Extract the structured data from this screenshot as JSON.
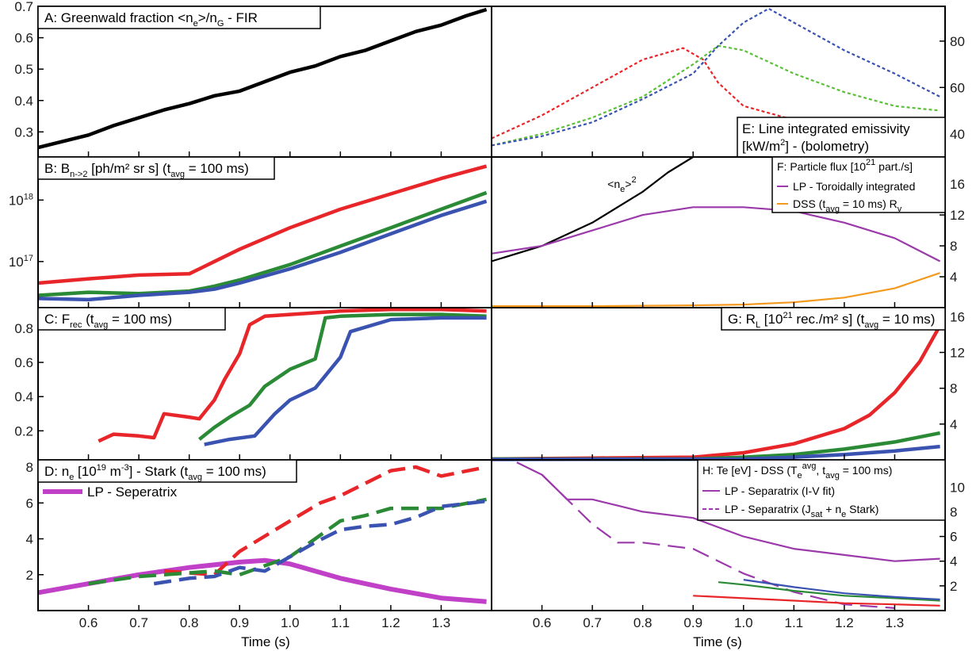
{
  "figure": {
    "xlabel": "Time (s)"
  },
  "colors": {
    "red": "#e8262a",
    "green": "#2a8a35",
    "blue": "#3a52b0",
    "purple": "#9b3aaa",
    "lime": "#5cbf3a",
    "orange": "#f39a1e",
    "black": "#000000"
  },
  "chart_data": [
    {
      "id": "A",
      "type": "line",
      "title": "A:   Greenwald fraction <n_e>/n_G - FIR",
      "xlim": [
        0.5,
        1.4
      ],
      "ylim": [
        0.22,
        0.7
      ],
      "yticks": [
        "0.3",
        "0.4",
        "0.5",
        "0.6",
        "0.7"
      ],
      "yaxis": "left",
      "series": [
        {
          "color": "#000000",
          "x": [
            0.5,
            0.55,
            0.6,
            0.65,
            0.7,
            0.75,
            0.8,
            0.85,
            0.9,
            0.95,
            1.0,
            1.05,
            1.1,
            1.15,
            1.2,
            1.25,
            1.3,
            1.35,
            1.39
          ],
          "y": [
            0.25,
            0.27,
            0.29,
            0.32,
            0.345,
            0.37,
            0.39,
            0.415,
            0.43,
            0.46,
            0.49,
            0.51,
            0.54,
            0.56,
            0.59,
            0.62,
            0.64,
            0.67,
            0.69
          ]
        }
      ]
    },
    {
      "id": "B",
      "type": "line",
      "title": "B:  B_{n->2} [ph/m² sr s] (t_avg = 100 ms)",
      "xlim": [
        0.5,
        1.4
      ],
      "ylim": [
        16.25,
        18.7
      ],
      "ylog": true,
      "yticks": [
        "10^17",
        "10^18"
      ],
      "yaxis": "left",
      "series": [
        {
          "color": "#e8262a",
          "x": [
            0.5,
            0.6,
            0.7,
            0.8,
            0.85,
            0.9,
            1.0,
            1.1,
            1.2,
            1.3,
            1.39
          ],
          "y": [
            16.65,
            16.72,
            16.78,
            16.8,
            17.0,
            17.2,
            17.55,
            17.85,
            18.1,
            18.35,
            18.55
          ]
        },
        {
          "color": "#2a8a35",
          "x": [
            0.5,
            0.6,
            0.7,
            0.8,
            0.85,
            0.9,
            1.0,
            1.1,
            1.2,
            1.3,
            1.39
          ],
          "y": [
            16.45,
            16.5,
            16.48,
            16.52,
            16.6,
            16.7,
            16.95,
            17.25,
            17.55,
            17.85,
            18.12
          ]
        },
        {
          "color": "#3a52b0",
          "x": [
            0.5,
            0.6,
            0.7,
            0.8,
            0.85,
            0.9,
            1.0,
            1.1,
            1.2,
            1.3,
            1.39
          ],
          "y": [
            16.4,
            16.38,
            16.45,
            16.5,
            16.55,
            16.65,
            16.88,
            17.15,
            17.45,
            17.75,
            17.98
          ]
        }
      ]
    },
    {
      "id": "C",
      "type": "line",
      "title": "C:  F_rec (t_avg = 100 ms)",
      "xlim": [
        0.5,
        1.4
      ],
      "ylim": [
        0.03,
        0.92
      ],
      "yticks": [
        "0.2",
        "0.4",
        "0.6",
        "0.8"
      ],
      "yaxis": "left",
      "series": [
        {
          "color": "#e8262a",
          "x": [
            0.62,
            0.65,
            0.7,
            0.73,
            0.75,
            0.8,
            0.82,
            0.85,
            0.87,
            0.9,
            0.92,
            0.95,
            1.0,
            1.1,
            1.2,
            1.3,
            1.39
          ],
          "y": [
            0.14,
            0.18,
            0.17,
            0.16,
            0.3,
            0.28,
            0.27,
            0.38,
            0.5,
            0.65,
            0.82,
            0.87,
            0.88,
            0.9,
            0.91,
            0.91,
            0.9
          ]
        },
        {
          "color": "#2a8a35",
          "x": [
            0.82,
            0.85,
            0.88,
            0.92,
            0.95,
            1.0,
            1.05,
            1.07,
            1.1,
            1.2,
            1.3,
            1.39
          ],
          "y": [
            0.15,
            0.22,
            0.28,
            0.35,
            0.46,
            0.56,
            0.62,
            0.86,
            0.87,
            0.88,
            0.88,
            0.87
          ]
        },
        {
          "color": "#3a52b0",
          "x": [
            0.83,
            0.88,
            0.93,
            0.97,
            1.0,
            1.05,
            1.1,
            1.12,
            1.2,
            1.3,
            1.39
          ],
          "y": [
            0.12,
            0.15,
            0.17,
            0.3,
            0.38,
            0.45,
            0.63,
            0.78,
            0.85,
            0.86,
            0.86
          ]
        }
      ]
    },
    {
      "id": "D",
      "type": "line",
      "title": "D:  n_e [10^19 m^-3] - Stark (t_avg = 100 ms)",
      "xlim": [
        0.5,
        1.4
      ],
      "ylim": [
        0,
        8.4
      ],
      "yticks": [
        "2",
        "4",
        "6",
        "8"
      ],
      "yaxis": "left",
      "legend": [
        "LP - Seperatrix"
      ],
      "series": [
        {
          "name": "LP - Seperatrix",
          "color": "#c040c8",
          "x": [
            0.5,
            0.6,
            0.7,
            0.8,
            0.9,
            0.95,
            1.0,
            1.05,
            1.1,
            1.2,
            1.3,
            1.39
          ],
          "y": [
            1.0,
            1.5,
            2.0,
            2.4,
            2.7,
            2.8,
            2.6,
            2.2,
            1.8,
            1.2,
            0.7,
            0.5
          ]
        },
        {
          "color": "#e8262a",
          "dashed": true,
          "x": [
            0.75,
            0.8,
            0.85,
            0.9,
            1.0,
            1.06,
            1.1,
            1.2,
            1.25,
            1.3,
            1.39
          ],
          "y": [
            2.2,
            2.1,
            2.0,
            3.3,
            5.0,
            6.0,
            6.4,
            7.8,
            8.0,
            7.5,
            8.0
          ]
        },
        {
          "color": "#2a8a35",
          "dashed": true,
          "x": [
            0.6,
            0.7,
            0.75,
            0.85,
            0.9,
            1.0,
            1.05,
            1.1,
            1.15,
            1.2,
            1.3,
            1.39
          ],
          "y": [
            1.5,
            1.9,
            2.0,
            2.2,
            2.0,
            3.0,
            4.0,
            5.0,
            5.3,
            5.7,
            5.7,
            6.2
          ]
        },
        {
          "color": "#3a52b0",
          "dashed": true,
          "x": [
            0.73,
            0.8,
            0.85,
            0.9,
            0.95,
            1.0,
            1.05,
            1.1,
            1.15,
            1.2,
            1.25,
            1.3,
            1.39
          ],
          "y": [
            1.5,
            1.8,
            1.9,
            2.4,
            2.2,
            3.0,
            3.8,
            4.5,
            4.7,
            4.8,
            5.2,
            5.8,
            6.1
          ]
        }
      ]
    },
    {
      "id": "E",
      "type": "line",
      "title": "E:    Line integrated emissivity [kW/m²] - (bolometry)",
      "xlim": [
        0.5,
        1.4
      ],
      "ylim": [
        30,
        95
      ],
      "yticks": [
        "40",
        "60",
        "80"
      ],
      "yaxis": "right",
      "series": [
        {
          "color": "#e8262a",
          "dashed": true,
          "x": [
            0.5,
            0.6,
            0.7,
            0.8,
            0.88,
            0.92,
            0.95,
            1.0,
            1.1,
            1.2,
            1.3,
            1.39
          ],
          "y": [
            38,
            48,
            60,
            72,
            77,
            72,
            62,
            52,
            46,
            44,
            44,
            45
          ]
        },
        {
          "color": "#5cbf3a",
          "dashed": true,
          "x": [
            0.5,
            0.6,
            0.7,
            0.8,
            0.9,
            0.95,
            1.0,
            1.1,
            1.2,
            1.3,
            1.39
          ],
          "y": [
            35,
            40,
            47,
            56,
            70,
            78,
            76,
            66,
            58,
            52,
            50
          ]
        },
        {
          "color": "#3a52b0",
          "dashed": true,
          "x": [
            0.5,
            0.6,
            0.7,
            0.8,
            0.9,
            0.95,
            1.0,
            1.05,
            1.1,
            1.2,
            1.3,
            1.39
          ],
          "y": [
            35,
            39,
            45,
            55,
            66,
            78,
            88,
            94,
            88,
            76,
            66,
            56
          ]
        }
      ]
    },
    {
      "id": "F",
      "type": "line",
      "title": "F:   Particle flux [10^21 part./s]",
      "xlim": [
        0.5,
        1.4
      ],
      "ylim": [
        0,
        19.5
      ],
      "yticks": [
        "4",
        "8",
        "12",
        "16"
      ],
      "yaxis": "right",
      "legend": [
        "LP - Toroidally integrated",
        "DSS (t_avg = 10 ms) R_v"
      ],
      "annotation": "<n_e>^2",
      "series": [
        {
          "name": "<n_e>^2",
          "color": "#000000",
          "x": [
            0.5,
            0.6,
            0.7,
            0.8,
            0.85,
            0.9
          ],
          "y": [
            6,
            8,
            11,
            15,
            17.5,
            19.5
          ]
        },
        {
          "name": "LP - Toroidally integrated",
          "color": "#9b3aaa",
          "x": [
            0.5,
            0.6,
            0.7,
            0.8,
            0.9,
            1.0,
            1.1,
            1.2,
            1.3,
            1.39
          ],
          "y": [
            7,
            8,
            10,
            12,
            13,
            13,
            12.5,
            11,
            9,
            6
          ]
        },
        {
          "name": "DSS (t_avg = 10 ms) R_v",
          "color": "#f39a1e",
          "x": [
            0.5,
            0.7,
            0.9,
            1.0,
            1.1,
            1.2,
            1.3,
            1.39
          ],
          "y": [
            0.2,
            0.2,
            0.3,
            0.4,
            0.7,
            1.3,
            2.5,
            4.5
          ]
        }
      ]
    },
    {
      "id": "G",
      "type": "line",
      "title": "G:   R_L [10^21 rec./m² s] (t_avg = 10 ms)",
      "xlim": [
        0.5,
        1.4
      ],
      "ylim": [
        0,
        17
      ],
      "yticks": [
        "4",
        "8",
        "12",
        "16"
      ],
      "yaxis": "right",
      "series": [
        {
          "color": "#e8262a",
          "x": [
            0.5,
            0.7,
            0.9,
            1.0,
            1.1,
            1.2,
            1.25,
            1.3,
            1.35,
            1.39
          ],
          "y": [
            0.1,
            0.2,
            0.3,
            0.8,
            1.8,
            3.5,
            5.0,
            7.5,
            11.0,
            15.0
          ]
        },
        {
          "color": "#2a8a35",
          "x": [
            0.5,
            0.9,
            1.0,
            1.1,
            1.2,
            1.3,
            1.39
          ],
          "y": [
            0.1,
            0.1,
            0.3,
            0.6,
            1.2,
            2.0,
            3.0
          ]
        },
        {
          "color": "#3a52b0",
          "x": [
            0.5,
            1.0,
            1.1,
            1.2,
            1.3,
            1.39
          ],
          "y": [
            0.05,
            0.1,
            0.3,
            0.6,
            1.0,
            1.5
          ]
        }
      ]
    },
    {
      "id": "H",
      "type": "line",
      "title": "H:   Te [eV] - DSS (T_e^avg, t_avg = 100 ms)",
      "xlim": [
        0.5,
        1.4
      ],
      "ylim": [
        0,
        12.2
      ],
      "yticks": [
        "2",
        "4",
        "6",
        "8",
        "10"
      ],
      "yaxis": "right",
      "legend": [
        "LP - Separatrix (I-V fit)",
        "LP - Separatrix (J_sat + n_e Stark)"
      ],
      "series": [
        {
          "name": "LP - Separatrix (I-V fit)",
          "color": "#9b3aaa",
          "x": [
            0.55,
            0.6,
            0.65,
            0.7,
            0.75,
            0.8,
            0.9,
            1.0,
            1.1,
            1.2,
            1.3,
            1.39
          ],
          "y": [
            12,
            11,
            9,
            9,
            8.5,
            8,
            7.5,
            6,
            5,
            4.5,
            4,
            4.2
          ]
        },
        {
          "name": "LP - Separatrix (J_sat + n_e Stark)",
          "color": "#9b3aaa",
          "dashed": true,
          "x": [
            0.6,
            0.65,
            0.7,
            0.75,
            0.8,
            0.9,
            1.0,
            1.1,
            1.2,
            1.3
          ],
          "y": [
            11,
            9,
            7,
            5.5,
            5.5,
            5,
            3,
            1.5,
            0.5,
            0.2
          ]
        },
        {
          "color": "#e8262a",
          "x": [
            0.9,
            1.0,
            1.1,
            1.2,
            1.3,
            1.39
          ],
          "y": [
            1.2,
            1.0,
            0.8,
            0.6,
            0.5,
            0.4
          ]
        },
        {
          "color": "#2a8a35",
          "x": [
            0.95,
            1.0,
            1.1,
            1.2,
            1.3,
            1.39
          ],
          "y": [
            2.3,
            2.1,
            1.6,
            1.2,
            1.0,
            0.8
          ]
        },
        {
          "color": "#3a52b0",
          "x": [
            1.0,
            1.1,
            1.2,
            1.3,
            1.39
          ],
          "y": [
            2.5,
            1.9,
            1.4,
            1.1,
            0.9
          ]
        }
      ]
    }
  ],
  "xticks": [
    "0.6",
    "0.7",
    "0.8",
    "0.9",
    "1.0",
    "1.1",
    "1.2",
    "1.3"
  ]
}
